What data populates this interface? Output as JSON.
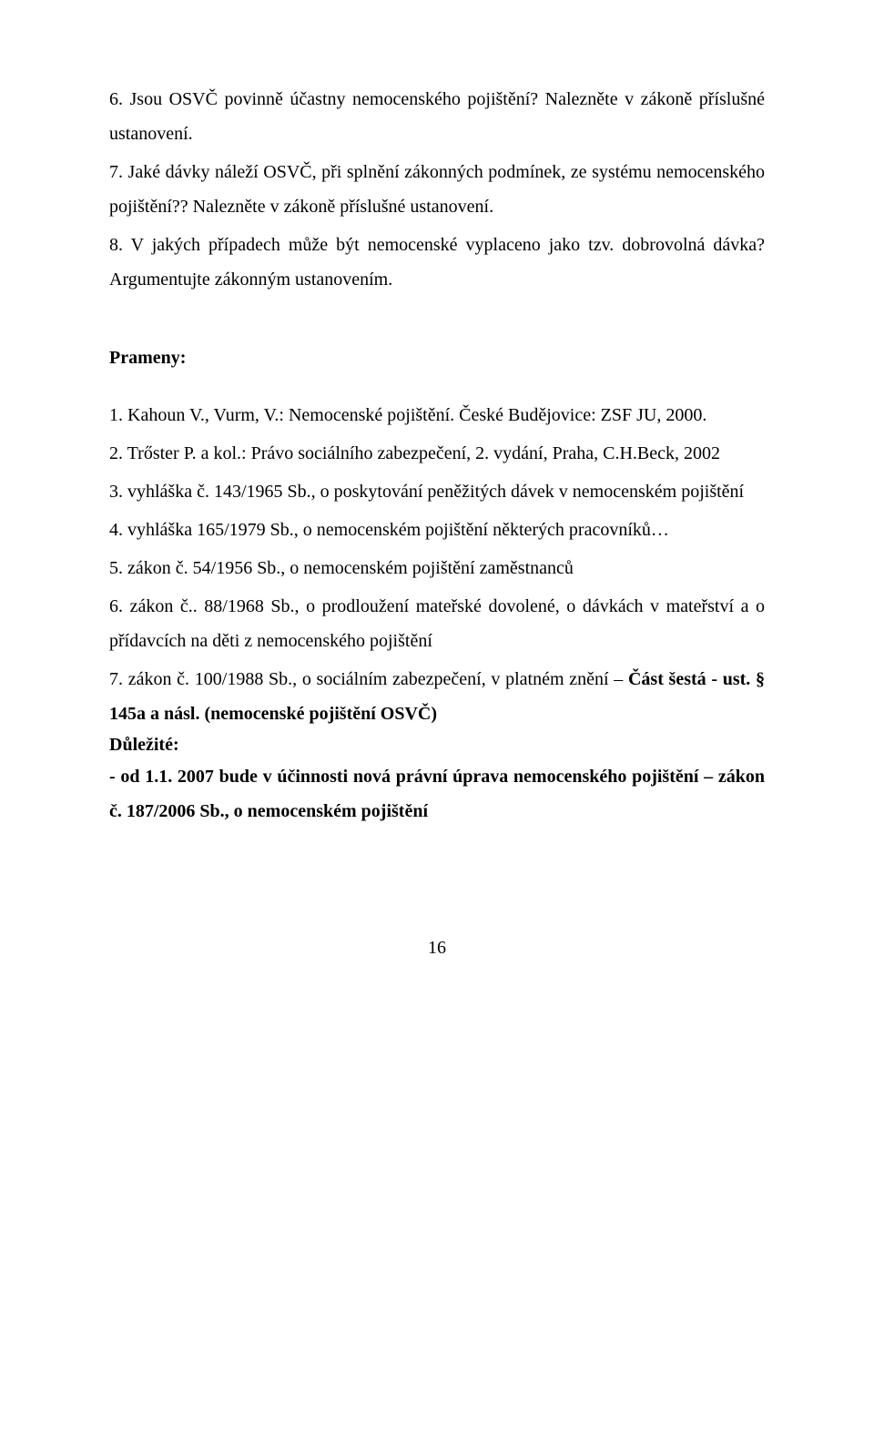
{
  "questions": [
    {
      "num": "6.",
      "text": "Jsou OSVČ povinně účastny nemocenského pojištění? Nalezněte v zákoně příslušné ustanovení."
    },
    {
      "num": "7.",
      "text": "Jaké dávky náleží OSVČ, při splnění zákonných podmínek, ze systému nemocenského pojištění?? Nalezněte v zákoně příslušné ustanovení."
    },
    {
      "num": "8.",
      "text": "V jakých případech může být nemocenské vyplaceno jako tzv. dobrovolná dávka? Argumentujte zákonným ustanovením."
    }
  ],
  "sources_heading": "Prameny:",
  "sources": [
    {
      "num": "1.",
      "text": "Kahoun V., Vurm, V.: Nemocenské pojištění. České Budějovice: ZSF JU, 2000."
    },
    {
      "num": "2.",
      "text": "Trőster P. a kol.: Právo sociálního zabezpečení, 2. vydání, Praha, C.H.Beck, 2002"
    },
    {
      "num": "3.",
      "text": "vyhláška č. 143/1965 Sb., o poskytování peněžitých dávek v nemocenském pojištění"
    },
    {
      "num": "4.",
      "text": "vyhláška 165/1979 Sb., o nemocenském pojištění některých pracovníků…"
    },
    {
      "num": "5.",
      "text": "zákon č. 54/1956 Sb., o nemocenském pojištění zaměstnanců"
    },
    {
      "num": "6.",
      "text": "zákon č.. 88/1968 Sb., o prodloužení mateřské dovolené, o dávkách v mateřství a o přídavcích na děti z nemocenského pojištění"
    }
  ],
  "source7": {
    "num": "7.",
    "prefix": "zákon č. 100/1988 Sb., o sociálním zabezpečení, v platném znění – ",
    "bold_part": "Část šestá - ust. § 145a a násl. (nemocenské pojištění OSVČ)"
  },
  "dulezite_label": "Důležité:",
  "note": "- od 1.1. 2007 bude v účinnosti nová právní úprava nemocenského pojištění – zákon č. 187/2006 Sb., o nemocenském pojištění",
  "page_number": "16"
}
